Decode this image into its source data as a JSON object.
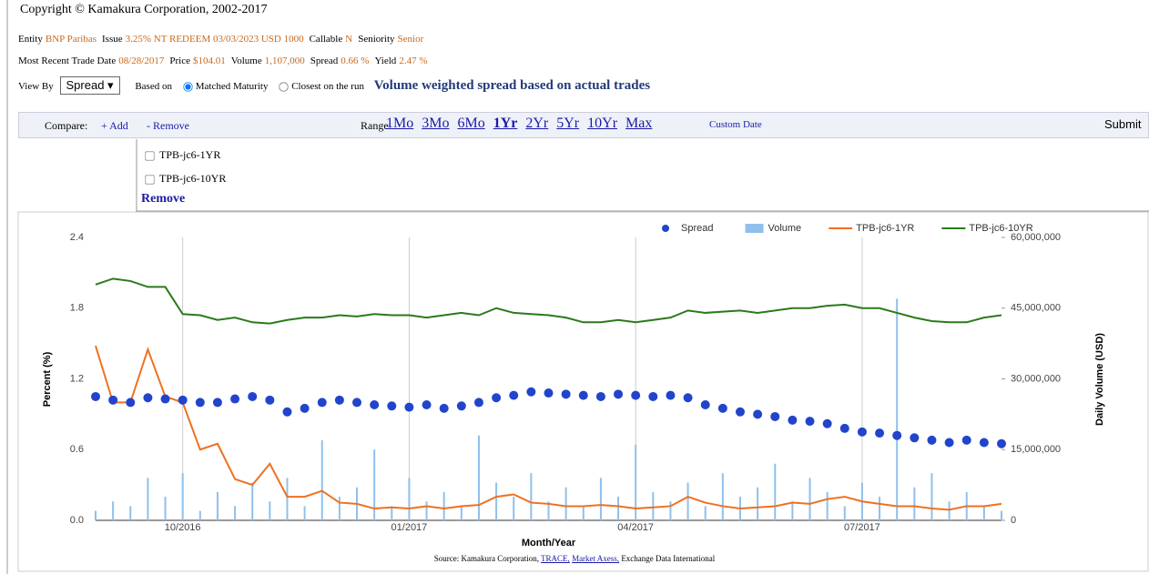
{
  "header": {
    "copyright": "Copyright © Kamakura Corporation, 2002-2017"
  },
  "info": {
    "entity": [
      [
        "Entity",
        "BNP Paribas"
      ],
      [
        "Issue",
        "3.25% NT REDEEM 03/03/2023 USD 1000"
      ],
      [
        "Callable",
        "N"
      ],
      [
        "Seniority",
        "Senior"
      ]
    ],
    "trade": [
      [
        "Most Recent Trade Date",
        "08/28/2017"
      ],
      [
        "Price",
        "$104.01"
      ],
      [
        "Volume",
        "1,107,000"
      ],
      [
        "Spread",
        "0.66 %"
      ],
      [
        "Yield",
        "2.47 %"
      ]
    ]
  },
  "controls": {
    "view_by": "View By",
    "view_by_value": "Spread",
    "based_on": "Based on",
    "options": [
      "Matched Maturity",
      "Closest on the run"
    ],
    "heading": "Volume weighted spread based on actual trades"
  },
  "toolbar": {
    "compare": "Compare:",
    "add": "+ Add",
    "remove": "- Remove",
    "range": "Range:",
    "ranges": [
      "1Mo",
      "3Mo",
      "6Mo",
      "1Yr",
      "2Yr",
      "5Yr",
      "10Yr",
      "Max"
    ],
    "custom": "Custom Date",
    "submit": "Submit"
  },
  "compare_list": {
    "items": [
      "TPB-jc6-1YR",
      "TPB-jc6-10YR"
    ],
    "remove": "Remove"
  },
  "chart_data": {
    "type": "combo",
    "x_label": "Month/Year",
    "y_label": "Percent (%)",
    "y2_label": "Daily Volume (USD)",
    "categories": [
      null,
      null,
      null,
      null,
      null,
      "10/2016",
      null,
      null,
      null,
      null,
      null,
      null,
      null,
      null,
      null,
      null,
      null,
      null,
      "01/2017",
      null,
      null,
      null,
      null,
      null,
      null,
      null,
      null,
      null,
      null,
      null,
      null,
      "04/2017",
      null,
      null,
      null,
      null,
      null,
      null,
      null,
      null,
      null,
      null,
      null,
      null,
      "07/2017",
      null,
      null,
      null,
      null,
      null,
      null,
      null,
      null
    ],
    "ylim": [
      0,
      2.4
    ],
    "yticks": [
      {
        "value": 0,
        "label": "0.0"
      },
      0.6,
      1.2,
      1.8,
      2.4
    ],
    "y2lim": [
      0,
      60000000
    ],
    "y2ticks": [
      0,
      {
        "value": 15000000,
        "label": "15,000,000"
      },
      {
        "value": 30000000,
        "label": "30,000,000"
      },
      {
        "value": 45000000,
        "label": "45,000,000"
      },
      {
        "value": 60000000,
        "label": "60,000,000"
      }
    ],
    "grid": true,
    "series": [
      {
        "name": "Spread",
        "type": "scatter",
        "color": "#2244cc",
        "values": [
          1.05,
          1.02,
          1.0,
          1.04,
          1.03,
          1.02,
          1.0,
          1.0,
          1.03,
          1.05,
          1.02,
          0.92,
          0.95,
          1.0,
          1.02,
          1.0,
          0.98,
          0.97,
          0.96,
          0.98,
          0.95,
          0.97,
          1.0,
          1.04,
          1.06,
          1.09,
          1.08,
          1.07,
          1.06,
          1.05,
          1.07,
          1.06,
          1.05,
          1.06,
          1.04,
          0.98,
          0.95,
          0.92,
          0.9,
          0.88,
          0.85,
          0.84,
          0.82,
          0.78,
          0.75,
          0.74,
          0.72,
          0.7,
          0.68,
          0.66,
          0.68,
          0.66,
          0.65
        ]
      },
      {
        "name": "Volume",
        "type": "bar",
        "axis": "y2",
        "color": "#8fc0ec",
        "values": [
          2000000,
          4000000,
          3000000,
          9000000,
          5000000,
          10000000,
          2000000,
          6000000,
          3000000,
          8000000,
          4000000,
          9000000,
          3000000,
          17000000,
          5000000,
          7000000,
          15000000,
          3000000,
          9000000,
          4000000,
          6000000,
          3000000,
          18000000,
          8000000,
          5000000,
          10000000,
          4000000,
          7000000,
          3000000,
          9000000,
          5000000,
          16000000,
          6000000,
          4000000,
          8000000,
          3000000,
          10000000,
          5000000,
          7000000,
          12000000,
          4000000,
          9000000,
          6000000,
          3000000,
          8000000,
          5000000,
          47000000,
          7000000,
          10000000,
          4000000,
          6000000,
          3000000,
          2000000
        ]
      },
      {
        "name": "TPB-jc6-1YR",
        "type": "line",
        "color": "#f07020",
        "values": [
          1.48,
          1.0,
          1.0,
          1.45,
          1.05,
          1.0,
          0.6,
          0.65,
          0.35,
          0.3,
          0.48,
          0.2,
          0.2,
          0.25,
          0.15,
          0.14,
          0.1,
          0.11,
          0.1,
          0.12,
          0.1,
          0.12,
          0.13,
          0.2,
          0.22,
          0.15,
          0.14,
          0.12,
          0.12,
          0.13,
          0.12,
          0.1,
          0.11,
          0.12,
          0.2,
          0.15,
          0.12,
          0.1,
          0.11,
          0.12,
          0.15,
          0.14,
          0.18,
          0.2,
          0.16,
          0.14,
          0.12,
          0.12,
          0.1,
          0.09,
          0.12,
          0.12,
          0.14
        ]
      },
      {
        "name": "TPB-jc6-10YR",
        "type": "line",
        "color": "#2a7a1a",
        "values": [
          2.0,
          2.05,
          2.03,
          1.98,
          1.98,
          1.75,
          1.74,
          1.7,
          1.72,
          1.68,
          1.67,
          1.7,
          1.72,
          1.72,
          1.74,
          1.73,
          1.75,
          1.74,
          1.74,
          1.72,
          1.74,
          1.76,
          1.74,
          1.8,
          1.76,
          1.75,
          1.74,
          1.72,
          1.68,
          1.68,
          1.7,
          1.68,
          1.7,
          1.72,
          1.78,
          1.76,
          1.77,
          1.78,
          1.76,
          1.78,
          1.8,
          1.8,
          1.82,
          1.83,
          1.8,
          1.8,
          1.76,
          1.72,
          1.69,
          1.68,
          1.68,
          1.72,
          1.74
        ]
      }
    ]
  },
  "source": [
    "Source: Kamakura Corporation,",
    "TRACE,",
    "Market Axess,",
    "Exchange Data International"
  ]
}
